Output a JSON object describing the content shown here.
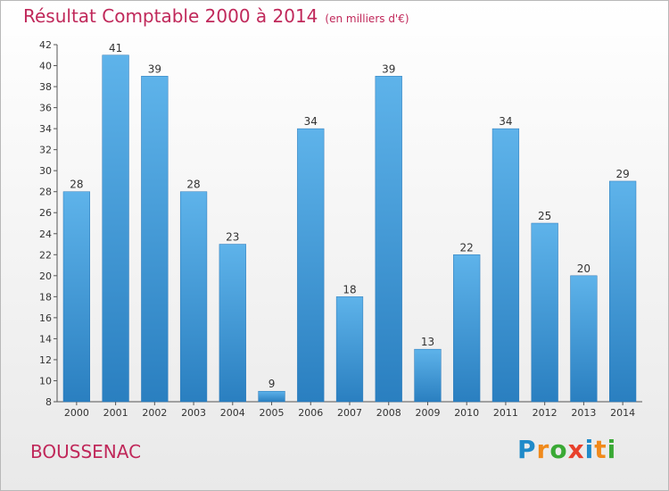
{
  "header": {
    "title": "Résultat Comptable 2000 à 2014",
    "subtitle": "(en milliers d'€)"
  },
  "footer": {
    "commune": "BOUSSENAC",
    "logo_letters": [
      {
        "ch": "P",
        "color": "#1f8ac9"
      },
      {
        "ch": "r",
        "color": "#f08a1c"
      },
      {
        "ch": "o",
        "color": "#3aa935"
      },
      {
        "ch": "x",
        "color": "#e8412c"
      },
      {
        "ch": "i",
        "color": "#1f8ac9"
      },
      {
        "ch": "t",
        "color": "#f08a1c"
      },
      {
        "ch": "i",
        "color": "#3aa935"
      }
    ]
  },
  "chart_data": {
    "type": "bar",
    "title": "Résultat Comptable 2000 à 2014",
    "subtitle": "(en milliers d'€)",
    "xlabel": "",
    "ylabel": "",
    "categories": [
      "2000",
      "2001",
      "2002",
      "2003",
      "2004",
      "2005",
      "2006",
      "2007",
      "2008",
      "2009",
      "2010",
      "2011",
      "2012",
      "2013",
      "2014"
    ],
    "values": [
      28,
      41,
      39,
      28,
      23,
      9,
      34,
      18,
      39,
      13,
      22,
      34,
      25,
      20,
      29
    ],
    "ylim": [
      8,
      42
    ],
    "yticks": [
      8,
      10,
      12,
      14,
      16,
      18,
      20,
      22,
      24,
      26,
      28,
      30,
      32,
      34,
      36,
      38,
      40,
      42
    ],
    "grid": false,
    "legend": "none",
    "bar_color_light": "#5eb3ea",
    "bar_color_dark": "#2a7fc0"
  }
}
